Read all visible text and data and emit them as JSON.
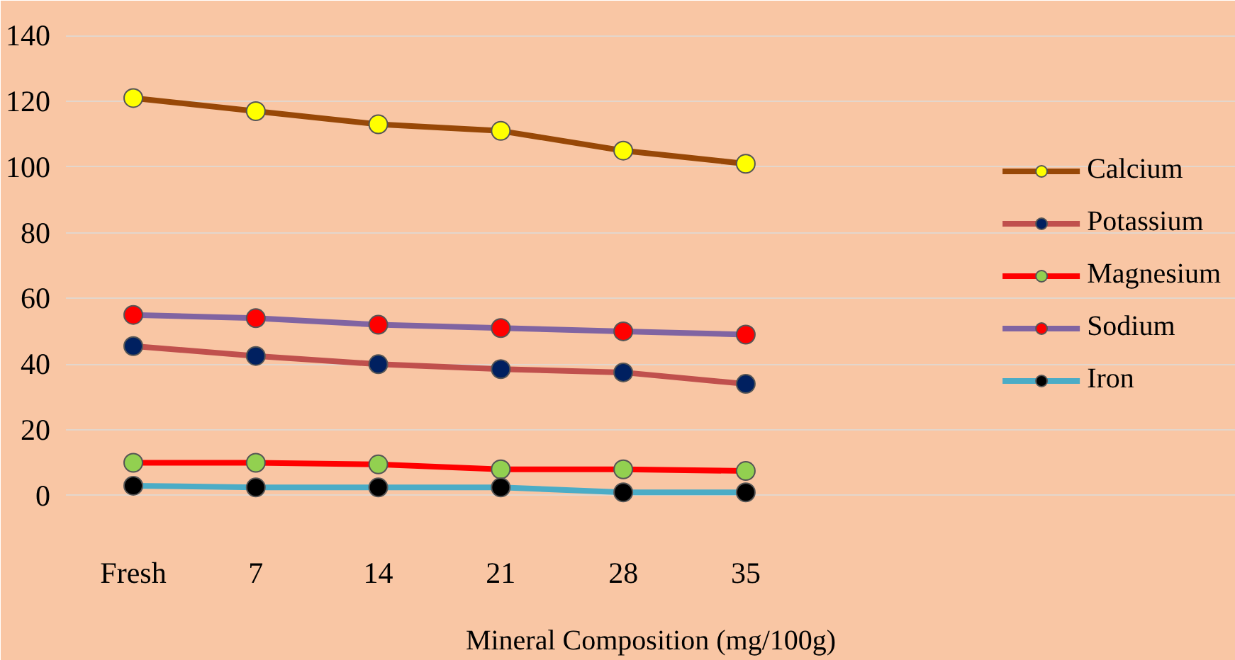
{
  "chart_data": {
    "type": "line",
    "xlabel": "Mineral Composition (mg/100g)",
    "categories": [
      "Fresh",
      "7",
      "14",
      "21",
      "28",
      "35"
    ],
    "ylim": [
      -8,
      142
    ],
    "yticks": [
      0,
      20,
      40,
      60,
      80,
      100,
      120,
      140
    ],
    "grid": "y",
    "legend": "right",
    "marker": "circle",
    "line_style": "solid",
    "series": [
      {
        "name": "Calcium",
        "color": "#984807",
        "colors": [
          "#ffff00",
          "#ffff00",
          "#ffff00",
          "#ffff00",
          "#ffff00",
          "#ffff00"
        ],
        "values": [
          121,
          117,
          113,
          111,
          105,
          101
        ]
      },
      {
        "name": "Potassium",
        "color": "#c0504d",
        "colors": [
          "#002060",
          "#002060",
          "#002060",
          "#002060",
          "#002060",
          "#002060"
        ],
        "values": [
          45.5,
          42.5,
          40,
          38.5,
          37.5,
          34
        ]
      },
      {
        "name": "Magnesium",
        "color": "#ff0000",
        "colors": [
          "#92d050",
          "#92d050",
          "#92d050",
          "#92d050",
          "#92d050",
          "#92d050"
        ],
        "values": [
          10,
          10,
          9.5,
          8,
          8,
          7.5
        ]
      },
      {
        "name": "Sodium",
        "color": "#8064a2",
        "colors": [
          "#ff0000",
          "#ff0000",
          "#ff0000",
          "#ff0000",
          "#ff0000",
          "#ff0000"
        ],
        "values": [
          55,
          54,
          52,
          51,
          50,
          49
        ]
      },
      {
        "name": "Iron",
        "color": "#4bacc6",
        "colors": [
          "#000000",
          "#000000",
          "#000000",
          "#000000",
          "#000000",
          "#000000"
        ],
        "values": [
          3,
          2.5,
          2.5,
          2.5,
          1,
          1
        ]
      }
    ]
  }
}
